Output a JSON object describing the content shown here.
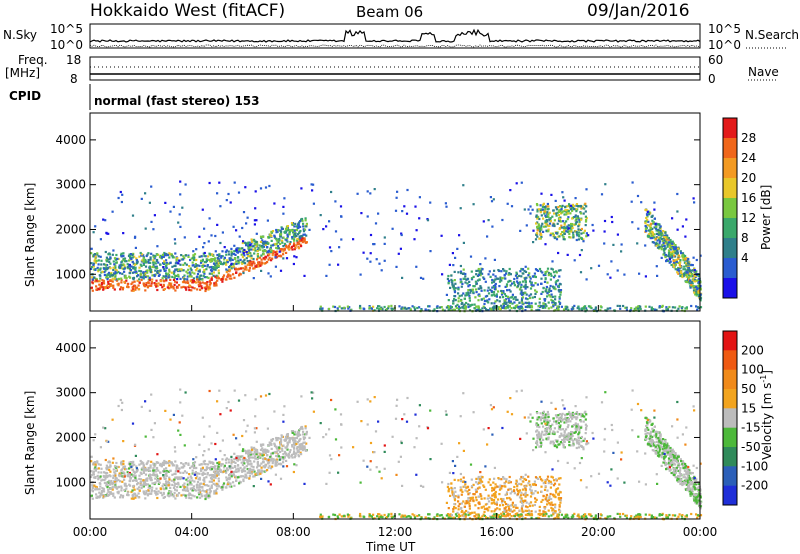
{
  "header": {
    "radar": "Hokkaido West (fitACF)",
    "beam": "Beam 06",
    "date": "09/Jan/2016"
  },
  "noise_panel": {
    "left_label": "N.Sky",
    "right_label": "N.Search",
    "tick_top": "10^5",
    "tick_bottom": "10^0"
  },
  "freq_panel": {
    "left_label_1": "Freq.",
    "left_label_2": "[MHz]",
    "right_label": "Nave",
    "left_tick_top": "18",
    "left_tick_bottom": "8",
    "right_tick_top": "60",
    "right_tick_bottom": "0"
  },
  "cpid_panel": {
    "label": "CPID",
    "mode": "normal (fast stereo) 153"
  },
  "chart_data": [
    {
      "type": "heatmap",
      "panel": "power",
      "ylabel": "Slant Range [km]",
      "yticks": [
        "4000",
        "3000",
        "2000",
        "1000"
      ],
      "ylim": [
        180,
        4600
      ],
      "xlim": [
        0,
        24
      ],
      "colorbar": {
        "label": "Power [dB]",
        "ticks": [
          "28",
          "24",
          "20",
          "16",
          "12",
          "8",
          "4"
        ],
        "range": [
          0,
          32
        ],
        "colors": [
          "#1a10e8",
          "#2a5cd0",
          "#2f7f8a",
          "#3aa86b",
          "#79c840",
          "#e8c72a",
          "#f39a22",
          "#f0661a",
          "#e31a1a"
        ]
      },
      "features": [
        {
          "t_start": 0,
          "t_end": 8.5,
          "range_start": 650,
          "range_end": 2200,
          "peak_db": 26
        },
        {
          "t_start": 14,
          "t_end": 18.5,
          "range_start": 200,
          "range_end": 1200,
          "peak_db": 14
        },
        {
          "t_start": 17.5,
          "t_end": 19.5,
          "range_start": 1800,
          "range_end": 2600,
          "peak_db": 20
        },
        {
          "t_start": 21.8,
          "t_end": 24,
          "range_start": 700,
          "range_end": 2600,
          "peak_db": 20
        }
      ]
    },
    {
      "type": "heatmap",
      "panel": "velocity",
      "ylabel": "Slant Range [km]",
      "yticks": [
        "4000",
        "3000",
        "2000",
        "1000"
      ],
      "ylim": [
        180,
        4600
      ],
      "xlim": [
        0,
        24
      ],
      "colorbar": {
        "label": "Velocity [m s^-1]",
        "unit_main": "Velocity [m s",
        "unit_sup": "-1",
        "unit_close": "]",
        "ticks": [
          "200",
          "100",
          "50",
          "15",
          "-15",
          "-50",
          "-100",
          "-200"
        ],
        "colors": [
          "#1f2fd8",
          "#2b5fb8",
          "#2f8a5a",
          "#4cb83a",
          "#bcbcbc",
          "#f2a41f",
          "#f08a1a",
          "#ef5a12",
          "#e21414"
        ]
      },
      "xticks": [
        "00:00",
        "04:00",
        "08:00",
        "12:00",
        "16:00",
        "20:00",
        "00:00"
      ],
      "xlabel": "Time UT"
    }
  ]
}
